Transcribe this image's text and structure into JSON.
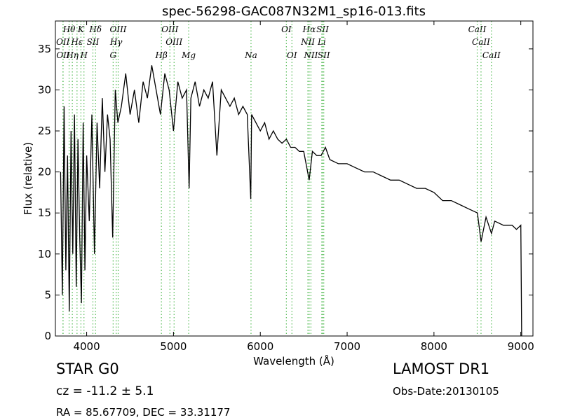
{
  "chart_data": {
    "type": "line",
    "title": "spec-56298-GAC087N32M1_sp16-013.fits",
    "xlabel": "Wavelength (Å)",
    "ylabel": "Flux (relative)",
    "xlim": [
      3640,
      9140
    ],
    "ylim": [
      0,
      38.4
    ],
    "xticks": [
      4000,
      5000,
      6000,
      7000,
      8000,
      9000
    ],
    "yticks": [
      0,
      5,
      10,
      15,
      20,
      25,
      30,
      35
    ],
    "series": [
      {
        "color": "#000000",
        "x": [
          3700,
          3720,
          3740,
          3760,
          3780,
          3800,
          3820,
          3840,
          3860,
          3880,
          3900,
          3920,
          3940,
          3960,
          3980,
          4000,
          4030,
          4060,
          4090,
          4120,
          4150,
          4180,
          4210,
          4240,
          4270,
          4300,
          4330,
          4360,
          4400,
          4450,
          4500,
          4550,
          4600,
          4650,
          4700,
          4750,
          4800,
          4850,
          4900,
          4950,
          5000,
          5050,
          5100,
          5150,
          5180,
          5200,
          5250,
          5300,
          5350,
          5400,
          5450,
          5500,
          5550,
          5600,
          5650,
          5700,
          5750,
          5800,
          5850,
          5890,
          5900,
          5950,
          6000,
          6050,
          6100,
          6150,
          6200,
          6250,
          6300,
          6350,
          6400,
          6450,
          6500,
          6563,
          6600,
          6650,
          6700,
          6750,
          6800,
          6900,
          7000,
          7100,
          7200,
          7300,
          7400,
          7500,
          7600,
          7700,
          7800,
          7900,
          8000,
          8100,
          8200,
          8300,
          8400,
          8500,
          8542,
          8600,
          8662,
          8700,
          8800,
          8900,
          8950,
          9000,
          9010
        ],
        "values": [
          20,
          5,
          28,
          8,
          22,
          3,
          25,
          10,
          27,
          6,
          24,
          12,
          4,
          26,
          8,
          22,
          14,
          27,
          10,
          26,
          18,
          29,
          20,
          27,
          24,
          12,
          30,
          26,
          28,
          32,
          27,
          30,
          26,
          31,
          29,
          33,
          30,
          27,
          32,
          30,
          25,
          31,
          29,
          30,
          18,
          29,
          31,
          28,
          30,
          29,
          31,
          22,
          30,
          29,
          28,
          29,
          27,
          28,
          27,
          16.7,
          27,
          26,
          25,
          26,
          24,
          25,
          24,
          23.5,
          24,
          23,
          23,
          22.5,
          22.5,
          19,
          22.5,
          22,
          22,
          23,
          21.5,
          21,
          21,
          20.5,
          20,
          20,
          19.5,
          19,
          19,
          18.5,
          18,
          18,
          17.5,
          16.5,
          16.5,
          16,
          15.5,
          15,
          11.5,
          14.5,
          12.5,
          14,
          13.5,
          13.5,
          13,
          13.5,
          0
        ]
      }
    ],
    "line_color": "#55bb55",
    "line_labels": [
      [
        {
          "label": "Hθ",
          "x": 3798
        },
        {
          "label": "K",
          "x": 3934
        },
        {
          "label": "Hδ",
          "x": 4102
        },
        {
          "label": "OIII",
          "x": 4363
        },
        {
          "label": "OIII",
          "x": 4959
        },
        {
          "label": "OI",
          "x": 6300
        },
        {
          "label": "Hα",
          "x": 6563
        },
        {
          "label": "SII",
          "x": 6717
        },
        {
          "label": "CaII",
          "x": 8498
        }
      ],
      [
        {
          "label": "OII",
          "x": 3727
        },
        {
          "label": "Hε",
          "x": 3889
        },
        {
          "label": "SII",
          "x": 4072
        },
        {
          "label": "Hγ",
          "x": 4340
        },
        {
          "label": "OIII",
          "x": 5007
        },
        {
          "label": "NII",
          "x": 6548
        },
        {
          "label": "Li",
          "x": 6708
        },
        {
          "label": "CaII",
          "x": 8542
        }
      ],
      [
        {
          "label": "OII",
          "x": 3729
        },
        {
          "label": "Hη",
          "x": 3835
        },
        {
          "label": "H",
          "x": 3969
        },
        {
          "label": "G",
          "x": 4305
        },
        {
          "label": "Hβ",
          "x": 4861
        },
        {
          "label": "Mg",
          "x": 5175
        },
        {
          "label": "Na",
          "x": 5893
        },
        {
          "label": "OI",
          "x": 6364
        },
        {
          "label": "NII",
          "x": 6583
        },
        {
          "label": "SII",
          "x": 6731
        },
        {
          "label": "CaII",
          "x": 8662
        }
      ]
    ],
    "info": {
      "object": "STAR   G0",
      "cz": "cz = -11.2 ± 5.1",
      "coords": "RA = 85.67709, DEC = 33.31177",
      "survey": "LAMOST DR1",
      "date": "Obs-Date:20130105"
    }
  }
}
